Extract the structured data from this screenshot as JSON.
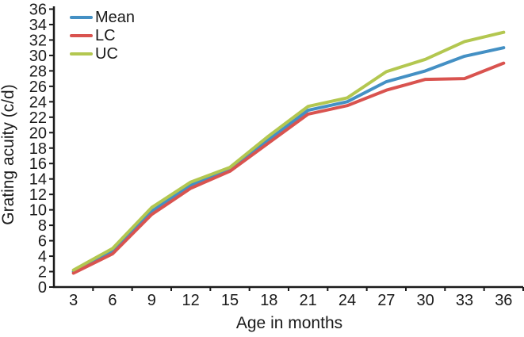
{
  "figure": {
    "background": "#ffffff",
    "axis_color": "#1a1a1a",
    "text_color": "#1a1a1a"
  },
  "legend": {
    "items": [
      {
        "label": "Mean",
        "color": "#4490c4"
      },
      {
        "label": "LC",
        "color": "#d9534f"
      },
      {
        "label": "UC",
        "color": "#b3c750"
      }
    ]
  },
  "chart_data": {
    "type": "line",
    "title": "",
    "xlabel": "Age in months",
    "ylabel": "Grating acuity (c/d)",
    "x": [
      3,
      6,
      9,
      12,
      15,
      18,
      21,
      24,
      27,
      30,
      33,
      36
    ],
    "x_tick_labels": [
      "3",
      "6",
      "9",
      "12",
      "15",
      "18",
      "21",
      "24",
      "27",
      "30",
      "33",
      "36"
    ],
    "y_ticks": [
      0,
      2,
      4,
      6,
      8,
      10,
      12,
      14,
      16,
      18,
      20,
      22,
      24,
      26,
      28,
      30,
      32,
      34,
      36
    ],
    "xlim": [
      1.5,
      37.5
    ],
    "ylim": [
      0,
      36
    ],
    "grid": false,
    "legend_position": "top-left",
    "x_ticks_at_midpoints": true,
    "series": [
      {
        "name": "Mean",
        "color": "#4490c4",
        "values": [
          2.0,
          4.6,
          9.8,
          13.2,
          15.2,
          19.1,
          22.9,
          24.0,
          26.6,
          28.0,
          29.9,
          31.0
        ]
      },
      {
        "name": "LC",
        "color": "#d9534f",
        "values": [
          1.8,
          4.3,
          9.4,
          12.8,
          15.0,
          18.7,
          22.4,
          23.5,
          25.5,
          26.9,
          27.0,
          29.0
        ]
      },
      {
        "name": "UC",
        "color": "#b3c750",
        "values": [
          2.2,
          5.0,
          10.3,
          13.6,
          15.5,
          19.6,
          23.4,
          24.5,
          27.9,
          29.5,
          31.8,
          33.0
        ]
      }
    ]
  }
}
